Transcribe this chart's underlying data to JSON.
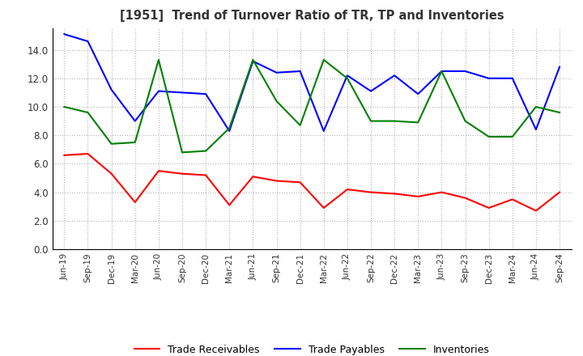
{
  "title": "[1951]  Trend of Turnover Ratio of TR, TP and Inventories",
  "ylim": [
    0,
    15.5
  ],
  "yticks": [
    0.0,
    2.0,
    4.0,
    6.0,
    8.0,
    10.0,
    12.0,
    14.0
  ],
  "legend_labels": [
    "Trade Receivables",
    "Trade Payables",
    "Inventories"
  ],
  "line_colors": [
    "#ff0000",
    "#0000ff",
    "#008000"
  ],
  "x_labels": [
    "Jun-19",
    "Sep-19",
    "Dec-19",
    "Mar-20",
    "Jun-20",
    "Sep-20",
    "Dec-20",
    "Mar-21",
    "Jun-21",
    "Sep-21",
    "Dec-21",
    "Mar-22",
    "Jun-22",
    "Sep-22",
    "Dec-22",
    "Mar-23",
    "Jun-23",
    "Sep-23",
    "Dec-23",
    "Mar-24",
    "Jun-24",
    "Sep-24"
  ],
  "trade_receivables": [
    6.6,
    6.7,
    5.3,
    3.3,
    5.5,
    5.3,
    5.2,
    3.1,
    5.1,
    4.8,
    4.7,
    2.9,
    4.2,
    4.0,
    3.9,
    3.7,
    4.0,
    3.6,
    2.9,
    3.5,
    2.7,
    4.0
  ],
  "trade_payables": [
    15.1,
    14.6,
    11.2,
    9.0,
    11.1,
    11.0,
    10.9,
    8.3,
    13.2,
    12.4,
    12.5,
    8.3,
    12.2,
    11.1,
    12.2,
    10.9,
    12.5,
    12.5,
    12.0,
    12.0,
    8.4,
    12.8
  ],
  "inventories": [
    10.0,
    9.6,
    7.4,
    7.5,
    13.3,
    6.8,
    6.9,
    8.5,
    13.3,
    10.4,
    8.7,
    13.3,
    12.0,
    9.0,
    9.0,
    8.9,
    12.5,
    9.0,
    7.9,
    7.9,
    10.0,
    9.6
  ]
}
